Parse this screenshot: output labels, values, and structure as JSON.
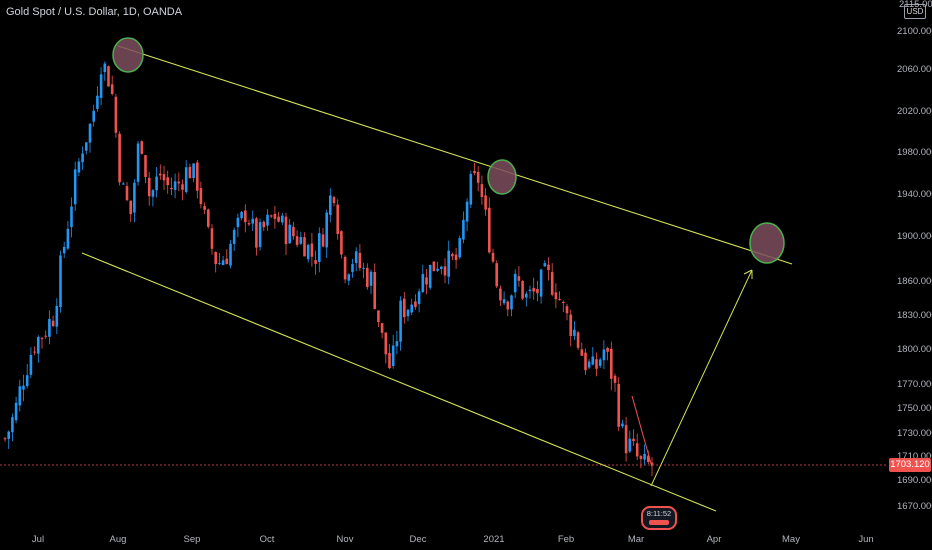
{
  "header": {
    "title": "Gold Spot / U.S. Dollar, 1D, OANDA",
    "currency": "USD"
  },
  "price_tag": "1703.120",
  "badge_value": "8:11:52",
  "colors": {
    "background": "#000000",
    "up_candle": "#2196f3",
    "down_candle": "#ef5350",
    "channel_line": "#d4e157",
    "circle_stroke": "#4caf50",
    "circle_fill": "#7e4d5e",
    "price_line": "#ef5350",
    "axis_text": "#b2b5be"
  },
  "chart_data": {
    "type": "candlestick",
    "symbol": "Gold Spot / U.S. Dollar",
    "interval": "1D",
    "source": "OANDA",
    "y_ticks": [
      "2100.000",
      "2060.000",
      "2020.000",
      "1980.000",
      "1940.000",
      "1900.000",
      "1860.000",
      "1830.000",
      "1800.000",
      "1770.000",
      "1750.000",
      "1730.000",
      "1710.000",
      "1690.000",
      "1670.000"
    ],
    "y_top_partial": "2115.000",
    "x_ticks": [
      "Jul",
      "Aug",
      "Sep",
      "Oct",
      "Nov",
      "Dec",
      "2021",
      "Feb",
      "Mar",
      "Apr",
      "May",
      "Jun"
    ],
    "last_price": 1703.12,
    "price_path": [
      [
        "Jul",
        1725
      ],
      [
        "Jul",
        1745
      ],
      [
        "Jul",
        1780
      ],
      [
        "Jul",
        1805
      ],
      [
        "Jul",
        1815
      ],
      [
        "Jul",
        1830
      ],
      [
        "Jul",
        1885
      ],
      [
        "Jul",
        1940
      ],
      [
        "Aug",
        1985
      ],
      [
        "Aug",
        2010
      ],
      [
        "Aug",
        2070
      ],
      [
        "Aug",
        2045
      ],
      [
        "Aug",
        1950
      ],
      [
        "Aug",
        1920
      ],
      [
        "Aug",
        2000
      ],
      [
        "Aug",
        1935
      ],
      [
        "Sep",
        1960
      ],
      [
        "Sep",
        1945
      ],
      [
        "Sep",
        1950
      ],
      [
        "Sep",
        1965
      ],
      [
        "Sep",
        1950
      ],
      [
        "Sep",
        1900
      ],
      [
        "Sep",
        1875
      ],
      [
        "Sep",
        1885
      ],
      [
        "Oct",
        1905
      ],
      [
        "Oct",
        1925
      ],
      [
        "Oct",
        1895
      ],
      [
        "Oct",
        1910
      ],
      [
        "Oct",
        1920
      ],
      [
        "Oct",
        1905
      ],
      [
        "Oct",
        1900
      ],
      [
        "Oct",
        1895
      ],
      [
        "Nov",
        1880
      ],
      [
        "Nov",
        1905
      ],
      [
        "Nov",
        1950
      ],
      [
        "Nov",
        1870
      ],
      [
        "Nov",
        1880
      ],
      [
        "Nov",
        1870
      ],
      [
        "Nov",
        1860
      ],
      [
        "Nov",
        1810
      ],
      [
        "Dec",
        1780
      ],
      [
        "Dec",
        1835
      ],
      [
        "Dec",
        1840
      ],
      [
        "Dec",
        1860
      ],
      [
        "Dec",
        1870
      ],
      [
        "Dec",
        1880
      ],
      [
        "Dec",
        1875
      ],
      [
        "Dec",
        1880
      ],
      [
        "2021",
        1945
      ],
      [
        "2021",
        1955
      ],
      [
        "2021",
        1905
      ],
      [
        "2021",
        1855
      ],
      [
        "2021",
        1845
      ],
      [
        "2021",
        1860
      ],
      [
        "2021",
        1845
      ],
      [
        "2021",
        1850
      ],
      [
        "Feb",
        1865
      ],
      [
        "Feb",
        1855
      ],
      [
        "Feb",
        1830
      ],
      [
        "Feb",
        1815
      ],
      [
        "Feb",
        1790
      ],
      [
        "Feb",
        1780
      ],
      [
        "Feb",
        1800
      ],
      [
        "Feb",
        1775
      ],
      [
        "Mar",
        1725
      ],
      [
        "Mar",
        1715
      ],
      [
        "Mar",
        1700
      ],
      [
        "Mar",
        1703
      ]
    ]
  }
}
